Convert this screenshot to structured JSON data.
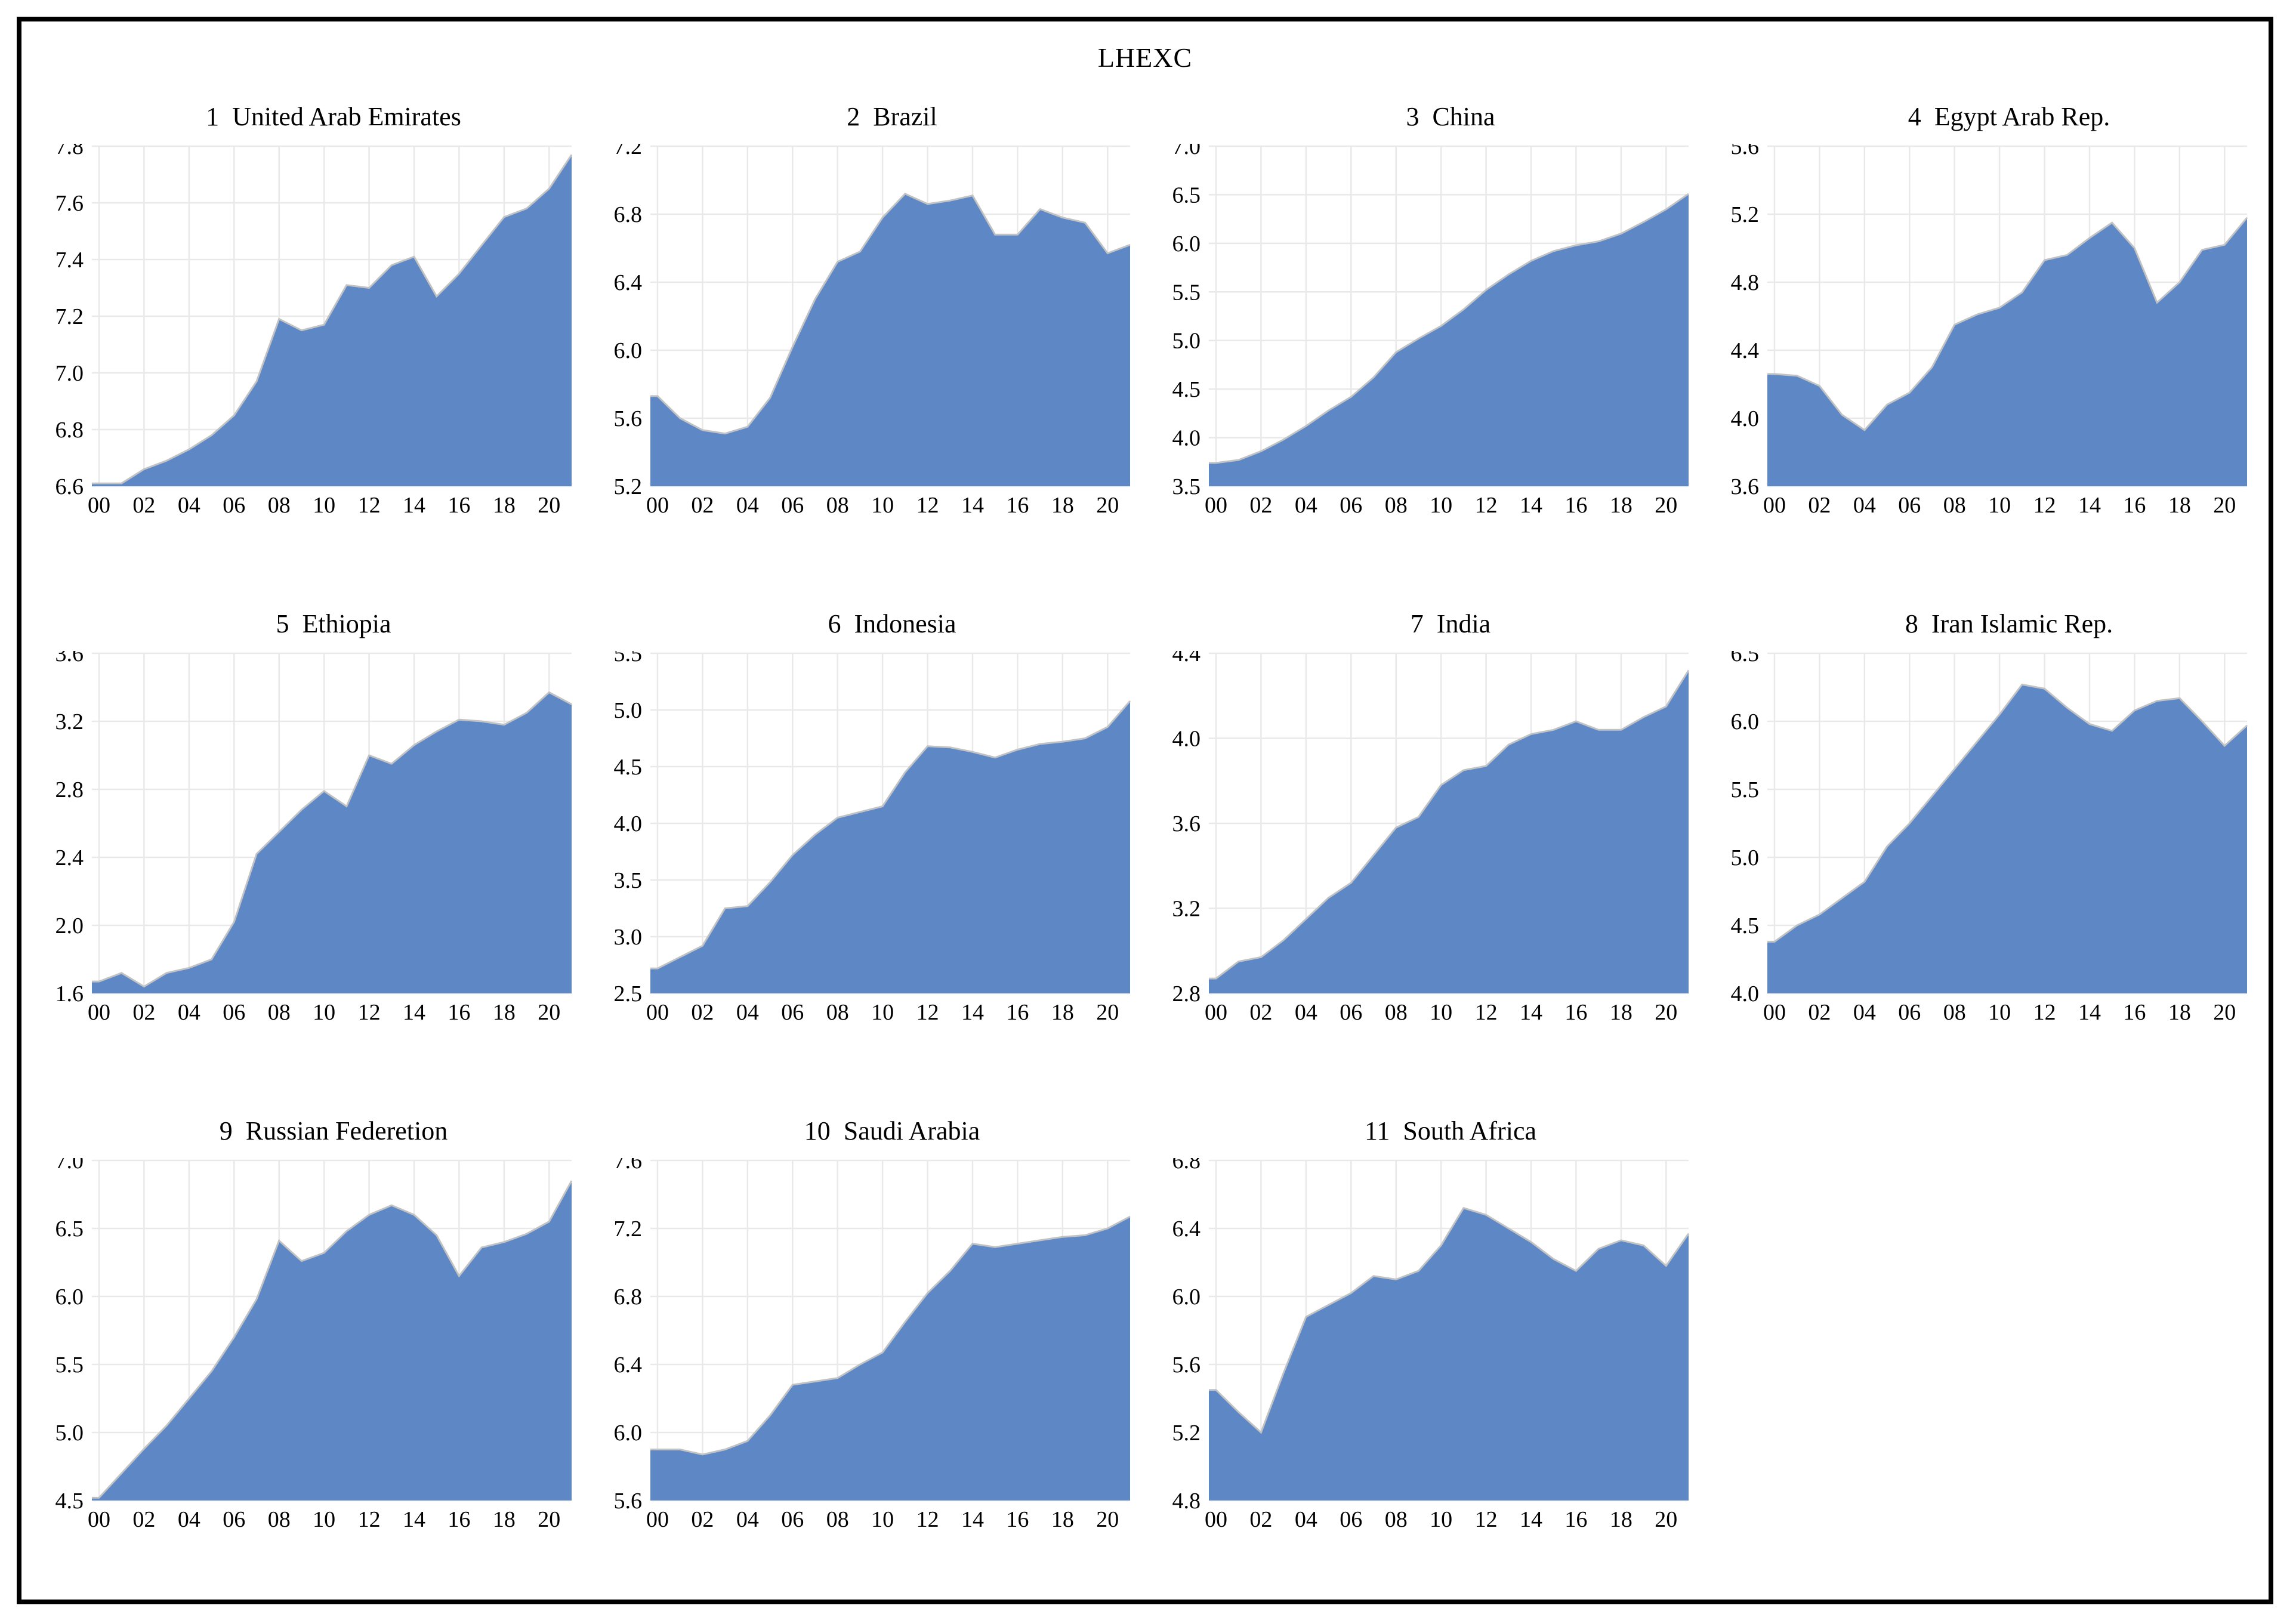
{
  "figure": {
    "title": "LHEXC",
    "background": "#ffffff",
    "border_color": "#000000"
  },
  "style": {
    "area_fill": "#5d87c5",
    "area_edge": "#c2c2c2",
    "grid_color": "#e9e9e9",
    "text_color": "#000000"
  },
  "x_axis": {
    "years": [
      2000,
      2001,
      2002,
      2003,
      2004,
      2005,
      2006,
      2007,
      2008,
      2009,
      2010,
      2011,
      2012,
      2013,
      2014,
      2015,
      2016,
      2017,
      2018,
      2019,
      2020,
      2021
    ],
    "tick_years": [
      2000,
      2002,
      2004,
      2006,
      2008,
      2010,
      2012,
      2014,
      2016,
      2018,
      2020
    ],
    "tick_labels": [
      "00",
      "02",
      "04",
      "06",
      "08",
      "10",
      "12",
      "14",
      "16",
      "18",
      "20"
    ]
  },
  "chart_data": [
    {
      "type": "area",
      "index": 1,
      "country": "United Arab Emirates",
      "title": "1  United Arab Emirates",
      "ylim": [
        6.6,
        7.8
      ],
      "yticks": [
        6.6,
        6.8,
        7.0,
        7.2,
        7.4,
        7.6,
        7.8
      ],
      "values": [
        6.61,
        6.61,
        6.66,
        6.69,
        6.73,
        6.78,
        6.85,
        6.97,
        7.19,
        7.15,
        7.17,
        7.31,
        7.3,
        7.38,
        7.41,
        7.27,
        7.35,
        7.45,
        7.55,
        7.58,
        7.65,
        7.77
      ]
    },
    {
      "type": "area",
      "index": 2,
      "country": "Brazil",
      "title": "2  Brazil",
      "ylim": [
        5.2,
        7.2
      ],
      "yticks": [
        5.2,
        5.6,
        6.0,
        6.4,
        6.8,
        7.2
      ],
      "values": [
        5.73,
        5.6,
        5.53,
        5.51,
        5.55,
        5.72,
        6.02,
        6.3,
        6.52,
        6.58,
        6.78,
        6.92,
        6.86,
        6.88,
        6.91,
        6.68,
        6.68,
        6.83,
        6.78,
        6.75,
        6.57,
        6.62
      ]
    },
    {
      "type": "area",
      "index": 3,
      "country": "China",
      "title": "3  China",
      "ylim": [
        3.5,
        7.0
      ],
      "yticks": [
        3.5,
        4.0,
        4.5,
        5.0,
        5.5,
        6.0,
        6.5,
        7.0
      ],
      "values": [
        3.74,
        3.77,
        3.86,
        3.98,
        4.12,
        4.28,
        4.42,
        4.62,
        4.88,
        5.02,
        5.15,
        5.32,
        5.52,
        5.68,
        5.82,
        5.92,
        5.98,
        6.02,
        6.1,
        6.22,
        6.35,
        6.51
      ]
    },
    {
      "type": "area",
      "index": 4,
      "country": "Egypt Arab Rep.",
      "title": "4  Egypt Arab Rep.",
      "ylim": [
        3.6,
        5.6
      ],
      "yticks": [
        3.6,
        4.0,
        4.4,
        4.8,
        5.2,
        5.6
      ],
      "values": [
        4.26,
        4.25,
        4.19,
        4.02,
        3.93,
        4.08,
        4.15,
        4.3,
        4.55,
        4.61,
        4.65,
        4.74,
        4.93,
        4.96,
        5.06,
        5.15,
        5.0,
        4.68,
        4.8,
        4.99,
        5.02,
        5.18
      ]
    },
    {
      "type": "area",
      "index": 5,
      "country": "Ethiopia",
      "title": "5  Ethiopia",
      "ylim": [
        1.6,
        3.6
      ],
      "yticks": [
        1.6,
        2.0,
        2.4,
        2.8,
        3.2,
        3.6
      ],
      "values": [
        1.67,
        1.72,
        1.64,
        1.72,
        1.75,
        1.8,
        2.02,
        2.42,
        2.55,
        2.68,
        2.79,
        2.7,
        3.0,
        2.95,
        3.06,
        3.14,
        3.21,
        3.2,
        3.18,
        3.25,
        3.37,
        3.3
      ]
    },
    {
      "type": "area",
      "index": 6,
      "country": "Indonesia",
      "title": "6  Indonesia",
      "ylim": [
        2.5,
        5.5
      ],
      "yticks": [
        2.5,
        3.0,
        3.5,
        4.0,
        4.5,
        5.0,
        5.5
      ],
      "values": [
        2.72,
        2.82,
        2.92,
        3.25,
        3.27,
        3.48,
        3.72,
        3.9,
        4.05,
        4.1,
        4.15,
        4.45,
        4.68,
        4.67,
        4.63,
        4.58,
        4.65,
        4.7,
        4.72,
        4.75,
        4.85,
        5.08
      ]
    },
    {
      "type": "area",
      "index": 7,
      "country": "India",
      "title": "7  India",
      "ylim": [
        2.8,
        4.4
      ],
      "yticks": [
        2.8,
        3.2,
        3.6,
        4.0,
        4.4
      ],
      "values": [
        2.87,
        2.95,
        2.97,
        3.05,
        3.15,
        3.25,
        3.32,
        3.45,
        3.58,
        3.63,
        3.78,
        3.85,
        3.87,
        3.97,
        4.02,
        4.04,
        4.08,
        4.04,
        4.04,
        4.1,
        4.15,
        4.32
      ]
    },
    {
      "type": "area",
      "index": 8,
      "country": "Iran Islamic Rep.",
      "title": "8  Iran Islamic Rep.",
      "ylim": [
        4.0,
        6.5
      ],
      "yticks": [
        4.0,
        4.5,
        5.0,
        5.5,
        6.0,
        6.5
      ],
      "values": [
        4.38,
        4.5,
        4.58,
        4.7,
        4.82,
        5.08,
        5.25,
        5.45,
        5.65,
        5.85,
        6.05,
        6.27,
        6.24,
        6.1,
        5.98,
        5.93,
        6.08,
        6.15,
        6.17,
        6.0,
        5.82,
        5.97
      ]
    },
    {
      "type": "area",
      "index": 9,
      "country": "Russian Federetion",
      "title": "9  Russian Federetion",
      "ylim": [
        4.5,
        7.0
      ],
      "yticks": [
        4.5,
        5.0,
        5.5,
        6.0,
        6.5,
        7.0
      ],
      "values": [
        4.52,
        4.7,
        4.88,
        5.05,
        5.25,
        5.45,
        5.7,
        5.98,
        6.41,
        6.26,
        6.32,
        6.48,
        6.6,
        6.67,
        6.6,
        6.45,
        6.15,
        6.36,
        6.4,
        6.46,
        6.55,
        6.85
      ]
    },
    {
      "type": "area",
      "index": 10,
      "country": "Saudi Arabia",
      "title": "10  Saudi Arabia",
      "ylim": [
        5.6,
        7.6
      ],
      "yticks": [
        5.6,
        6.0,
        6.4,
        6.8,
        7.2,
        7.6
      ],
      "values": [
        5.9,
        5.9,
        5.87,
        5.9,
        5.95,
        6.1,
        6.28,
        6.3,
        6.32,
        6.4,
        6.47,
        6.65,
        6.82,
        6.95,
        7.11,
        7.09,
        7.11,
        7.13,
        7.15,
        7.16,
        7.2,
        7.27
      ]
    },
    {
      "type": "area",
      "index": 11,
      "country": "South Africa",
      "title": "11  South Africa",
      "ylim": [
        4.8,
        6.8
      ],
      "yticks": [
        4.8,
        5.2,
        5.6,
        6.0,
        6.4,
        6.8
      ],
      "values": [
        5.45,
        5.32,
        5.2,
        5.55,
        5.88,
        5.95,
        6.02,
        6.12,
        6.1,
        6.15,
        6.3,
        6.52,
        6.48,
        6.4,
        6.32,
        6.22,
        6.15,
        6.28,
        6.33,
        6.3,
        6.18,
        6.37
      ]
    }
  ]
}
